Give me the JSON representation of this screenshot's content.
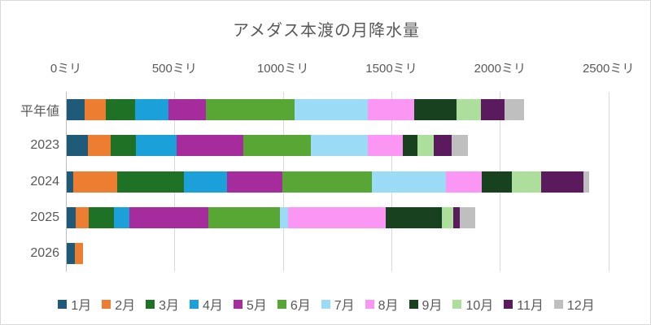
{
  "chart_data": {
    "type": "bar",
    "orientation": "horizontal",
    "stacked": true,
    "title": "アメダス本渡の月降水量",
    "unit": "ミリ",
    "grid": true,
    "legend_position": "bottom",
    "categories": [
      "平年値",
      "2023",
      "2024",
      "2025",
      "2026"
    ],
    "x_axis": {
      "min": 0,
      "max": 2500,
      "step": 500,
      "tick_labels": [
        "0ミリ",
        "500ミリ",
        "1000ミリ",
        "1500ミリ",
        "2000ミリ",
        "2500ミリ"
      ]
    },
    "series": [
      {
        "name": "1月",
        "color": "#1F5B78",
        "values": [
          84,
          98,
          31,
          41,
          38
        ]
      },
      {
        "name": "2月",
        "color": "#ED7D31",
        "values": [
          95,
          104,
          200,
          59,
          38
        ]
      },
      {
        "name": "3月",
        "color": "#1E7125",
        "values": [
          137,
          115,
          310,
          119,
          0
        ]
      },
      {
        "name": "4月",
        "color": "#1CA0D9",
        "values": [
          153,
          190,
          196,
          69,
          0
        ]
      },
      {
        "name": "5月",
        "color": "#A62C9E",
        "values": [
          172,
          306,
          256,
          366,
          0
        ]
      },
      {
        "name": "6月",
        "color": "#58A633",
        "values": [
          409,
          313,
          415,
          328,
          0
        ]
      },
      {
        "name": "7月",
        "color": "#9BDBF5",
        "values": [
          338,
          260,
          341,
          40,
          0
        ]
      },
      {
        "name": "8月",
        "color": "#FB96F5",
        "values": [
          212,
          163,
          165,
          448,
          0
        ]
      },
      {
        "name": "9月",
        "color": "#17411F",
        "values": [
          198,
          68,
          138,
          259,
          0
        ]
      },
      {
        "name": "10月",
        "color": "#ACDF9C",
        "values": [
          112,
          75,
          133,
          54,
          0
        ]
      },
      {
        "name": "11月",
        "color": "#5C1A5E",
        "values": [
          109,
          83,
          196,
          29,
          0
        ]
      },
      {
        "name": "12月",
        "color": "#BFBFBF",
        "values": [
          88,
          75,
          28,
          71,
          0
        ]
      }
    ]
  }
}
